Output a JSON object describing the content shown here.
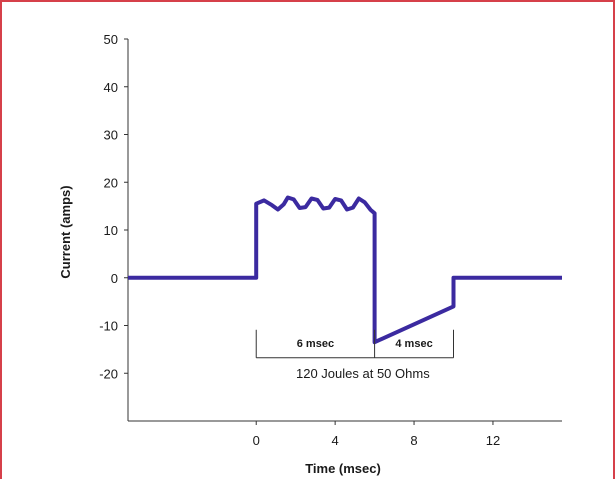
{
  "chart_data": {
    "type": "line",
    "title": "",
    "xlabel": "Time (msec)",
    "ylabel": "Current (amps)",
    "xlim": [
      -6.5,
      15.5
    ],
    "ylim": [
      -30,
      50
    ],
    "x_ticks": [
      0,
      4,
      8,
      12
    ],
    "y_ticks": [
      50,
      40,
      30,
      20,
      10,
      0,
      -10,
      -20
    ],
    "grid": false,
    "colors": {
      "line": "#3b2aa0",
      "axis": "#333333"
    },
    "series": [
      {
        "values": [
          {
            "x": -6.5,
            "y": 0
          },
          {
            "x": 0.0,
            "y": 0
          },
          {
            "x": 0.0,
            "y": 15.5
          },
          {
            "x": 0.4,
            "y": 16.2
          },
          {
            "x": 0.8,
            "y": 15.2
          },
          {
            "x": 1.1,
            "y": 14.3
          },
          {
            "x": 1.4,
            "y": 15.4
          },
          {
            "x": 1.6,
            "y": 16.8
          },
          {
            "x": 1.9,
            "y": 16.4
          },
          {
            "x": 2.2,
            "y": 14.6
          },
          {
            "x": 2.5,
            "y": 14.8
          },
          {
            "x": 2.8,
            "y": 16.6
          },
          {
            "x": 3.1,
            "y": 16.3
          },
          {
            "x": 3.4,
            "y": 14.5
          },
          {
            "x": 3.7,
            "y": 14.7
          },
          {
            "x": 4.0,
            "y": 16.5
          },
          {
            "x": 4.3,
            "y": 16.2
          },
          {
            "x": 4.6,
            "y": 14.3
          },
          {
            "x": 4.9,
            "y": 14.7
          },
          {
            "x": 5.2,
            "y": 16.6
          },
          {
            "x": 5.5,
            "y": 15.8
          },
          {
            "x": 5.8,
            "y": 14.2
          },
          {
            "x": 6.0,
            "y": 13.5
          },
          {
            "x": 6.0,
            "y": -13.5
          },
          {
            "x": 10.0,
            "y": -6.0
          },
          {
            "x": 10.0,
            "y": 0
          },
          {
            "x": 15.5,
            "y": 0
          }
        ]
      }
    ],
    "annotations": {
      "bracket_left_label": "6 msec",
      "bracket_right_label": "4 msec",
      "bracket_left_range": [
        0,
        6
      ],
      "bracket_right_range": [
        6,
        10
      ],
      "bracket_y": -15.5,
      "energy_label": "120 Joules at 50 Ohms"
    }
  }
}
